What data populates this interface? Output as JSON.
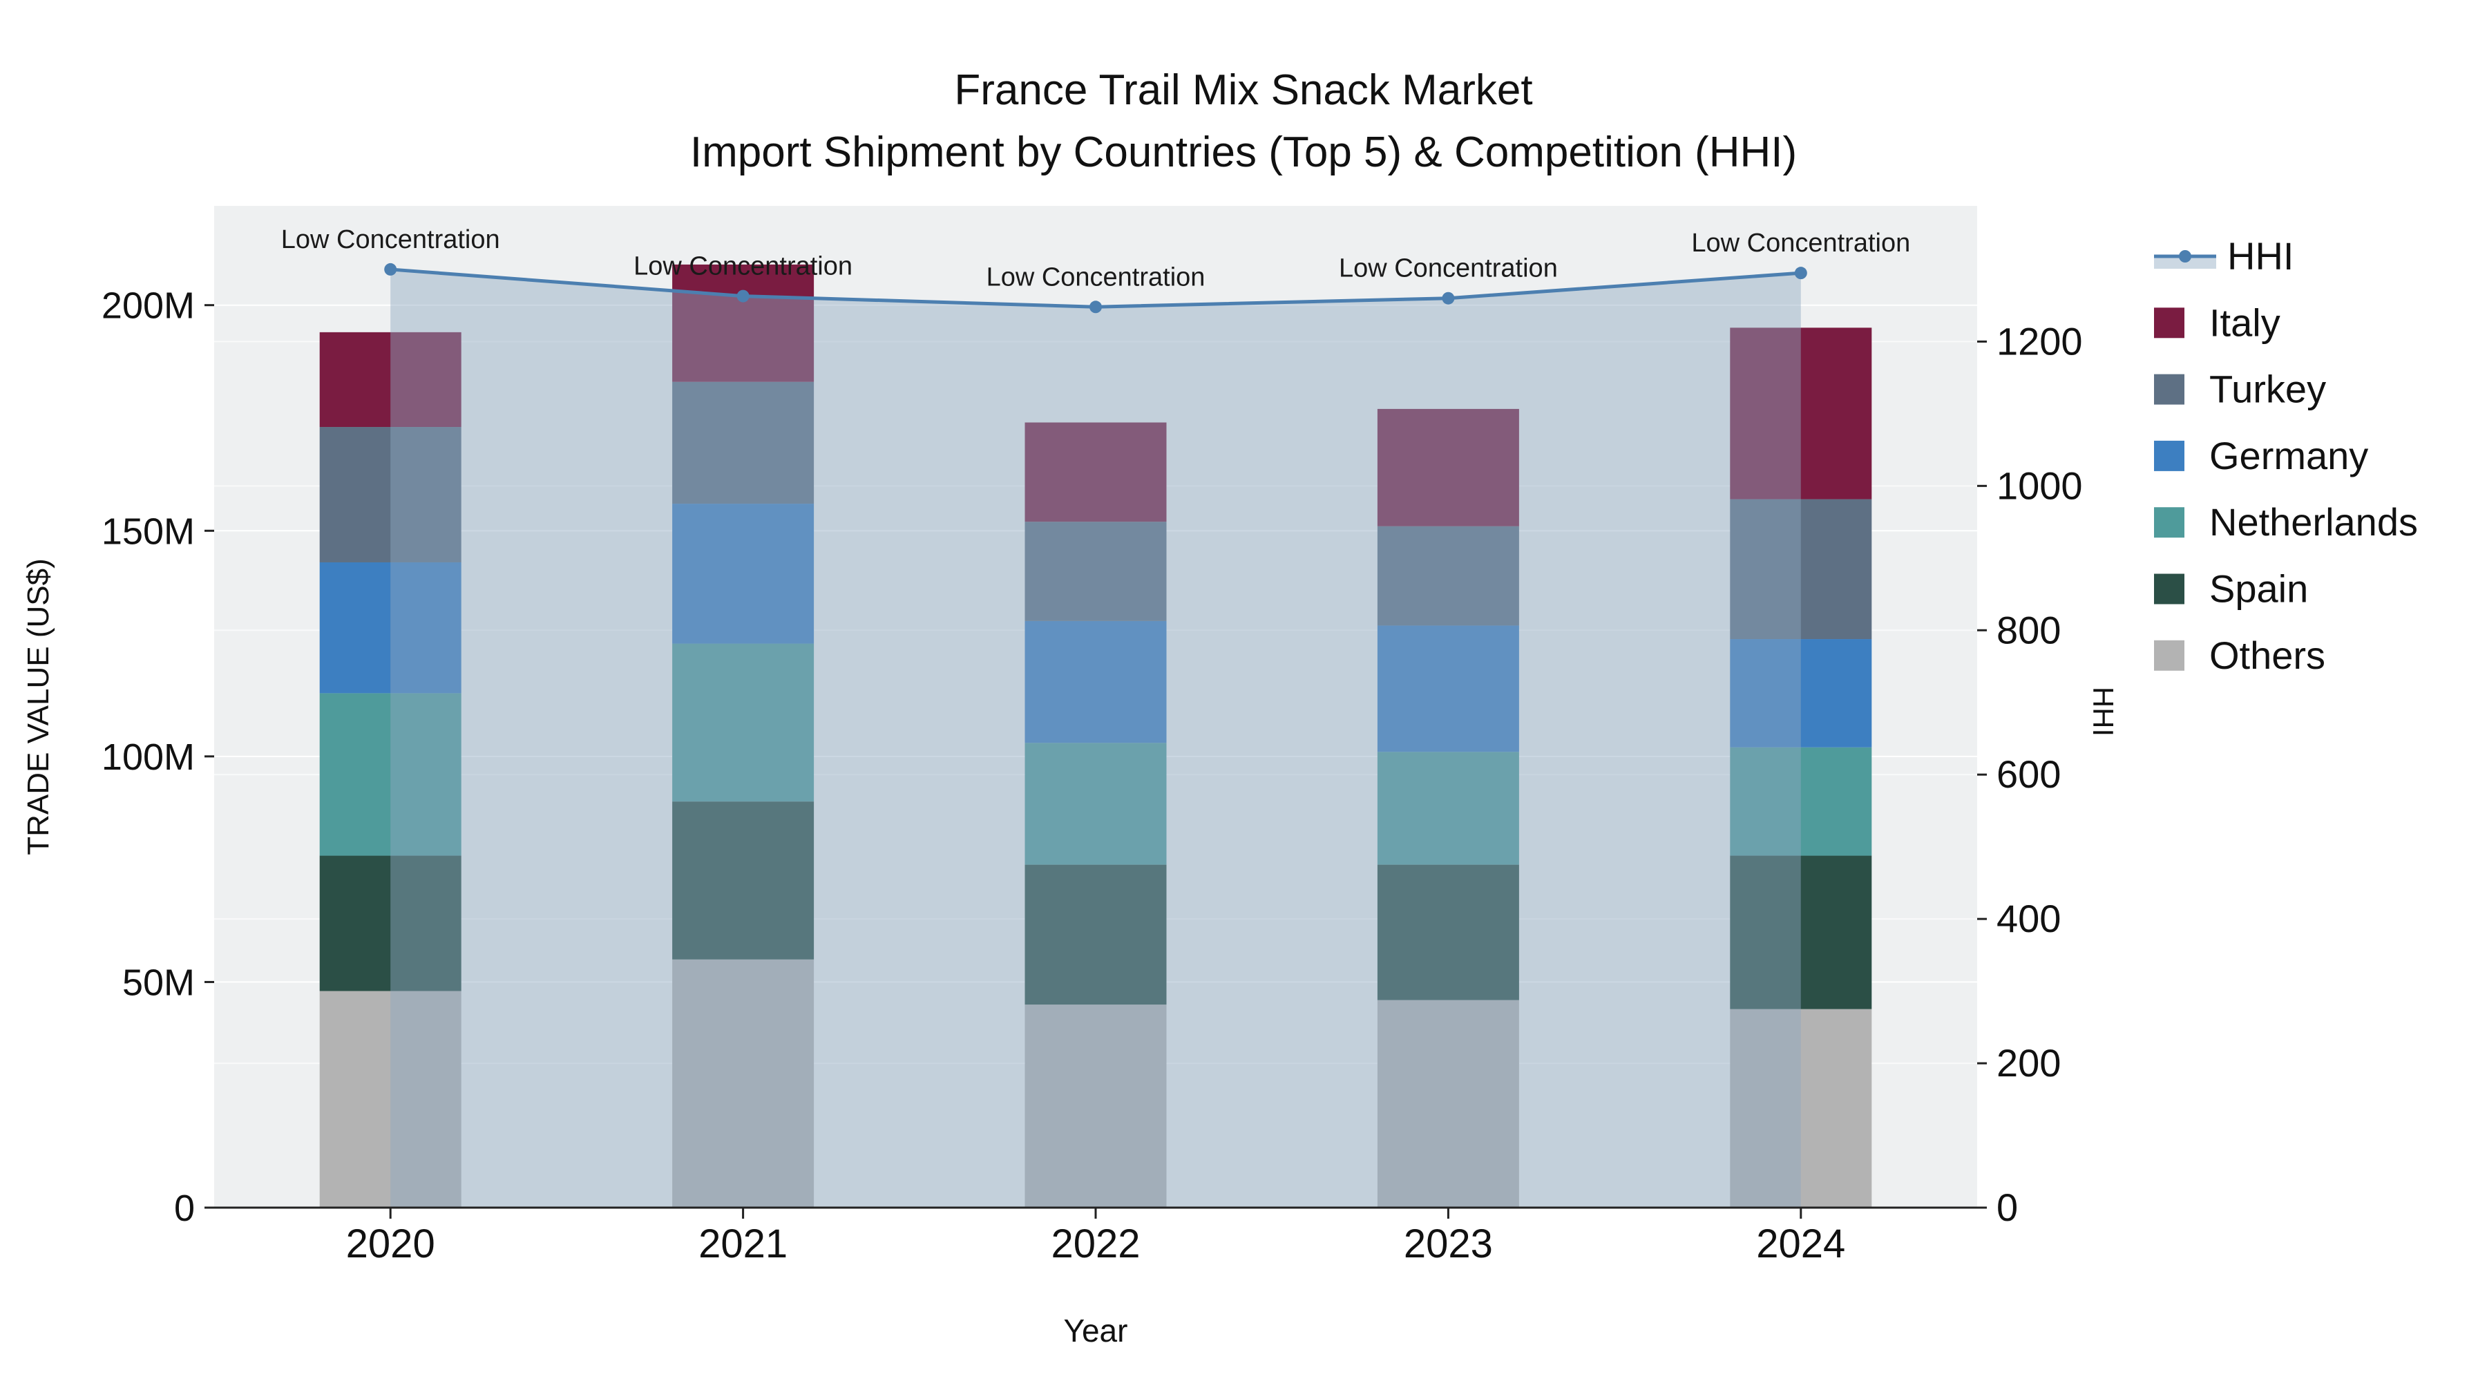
{
  "title": {
    "line1": "France Trail Mix Snack Market",
    "line2": "Import Shipment by Countries (Top 5) & Competition (HHI)"
  },
  "chart_data": {
    "type": "bar",
    "subtype": "stacked-bars-with-hhi-line-area",
    "x_label": "Year",
    "categories": [
      "2020",
      "2021",
      "2022",
      "2023",
      "2024"
    ],
    "bar_values_unit": "Million US$",
    "bar_series": [
      {
        "name": "Others",
        "color": "#b3b3b3",
        "values": [
          48,
          55,
          45,
          46,
          44
        ]
      },
      {
        "name": "Spain",
        "color": "#2b4f46",
        "values": [
          30,
          35,
          31,
          30,
          34
        ]
      },
      {
        "name": "Netherlands",
        "color": "#4f9b9b",
        "values": [
          36,
          35,
          27,
          25,
          24
        ]
      },
      {
        "name": "Germany",
        "color": "#3d7fc1",
        "values": [
          29,
          31,
          27,
          28,
          24
        ]
      },
      {
        "name": "Turkey",
        "color": "#5e7084",
        "values": [
          30,
          27,
          22,
          22,
          31
        ]
      },
      {
        "name": "Italy",
        "color": "#7a1c41",
        "values": [
          21,
          26,
          22,
          26,
          38
        ]
      }
    ],
    "line_series": {
      "name": "HHI",
      "color": "#4c7fb0",
      "fill_color": "rgba(143,168,192,0.45)",
      "values": [
        1300,
        1263,
        1248,
        1260,
        1295
      ]
    },
    "annotations": [
      {
        "x": "2020",
        "text": "Low Concentration"
      },
      {
        "x": "2021",
        "text": "Low Concentration"
      },
      {
        "x": "2022",
        "text": "Low Concentration"
      },
      {
        "x": "2023",
        "text": "Low Concentration"
      },
      {
        "x": "2024",
        "text": "Low Concentration"
      }
    ],
    "y_left": {
      "title": "TRADE VALUE (US$)",
      "tick_labels": [
        "0",
        "50M",
        "100M",
        "150M",
        "200M"
      ],
      "tick_values": [
        0,
        50,
        100,
        150,
        200
      ],
      "range": [
        0,
        222
      ]
    },
    "y_right": {
      "title": "HHI",
      "tick_labels": [
        "0",
        "200",
        "400",
        "600",
        "800",
        "1000",
        "1200"
      ],
      "tick_values": [
        0,
        200,
        400,
        600,
        800,
        1000,
        1200
      ],
      "range": [
        0,
        1388
      ]
    },
    "legend": [
      "HHI",
      "Italy",
      "Turkey",
      "Germany",
      "Netherlands",
      "Spain",
      "Others"
    ],
    "plot_background": "#eef0f1"
  }
}
